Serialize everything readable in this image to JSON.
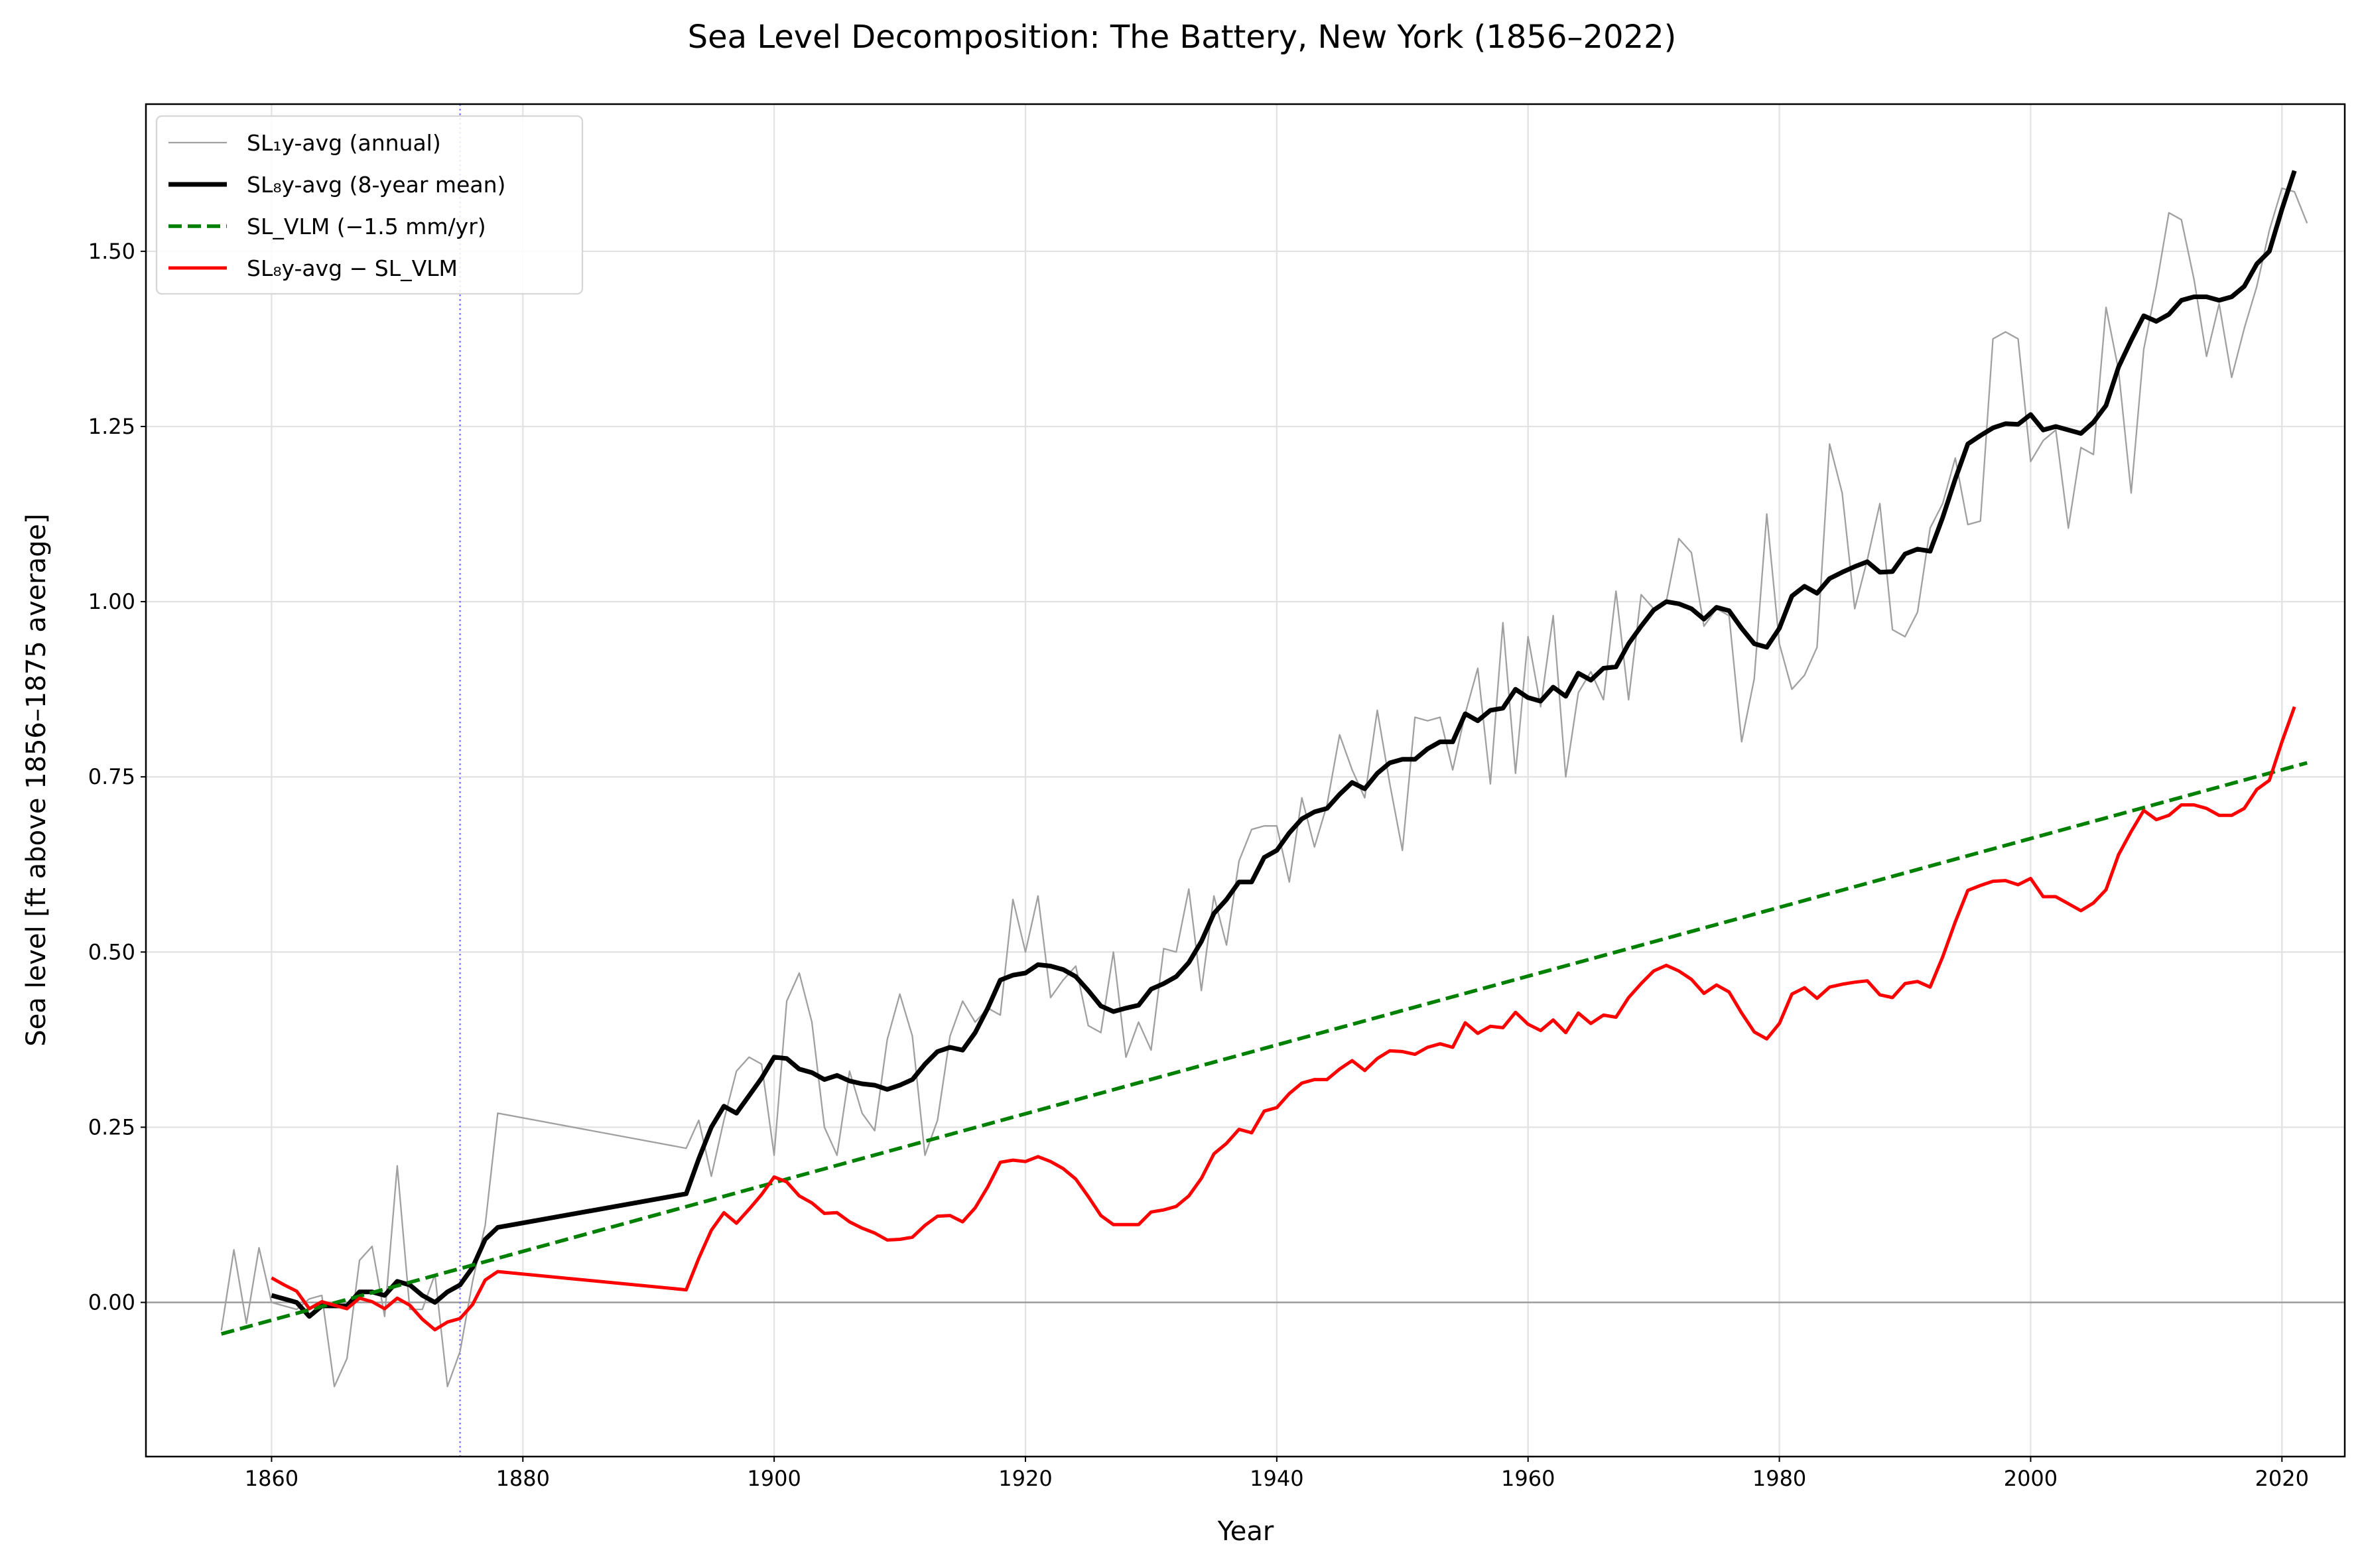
{
  "chart_data": {
    "type": "line",
    "title": "Sea Level Decomposition: The Battery, New York (1856–2022)",
    "xlabel": "Year",
    "ylabel": "Sea level [ft above 1856–1875 average]",
    "xlim": [
      1850,
      2025
    ],
    "ylim": [
      -0.22,
      1.71
    ],
    "xticks": [
      1860,
      1880,
      1900,
      1920,
      1940,
      1960,
      1980,
      2000,
      2020
    ],
    "xtick_labels": [
      "1860",
      "1880",
      "1900",
      "1920",
      "1940",
      "1960",
      "1980",
      "2000",
      "2020"
    ],
    "yticks": [
      0,
      0.25,
      0.5,
      0.75,
      1.0,
      1.25,
      1.5
    ],
    "ytick_labels": [
      "0.00",
      "0.25",
      "0.50",
      "0.75",
      "1.00",
      "1.25",
      "1.50"
    ],
    "grid": true,
    "legend_placement": "upper-left",
    "reference_lines": {
      "zero_line": 0,
      "vertical_marker_year": 1875,
      "vertical_marker_color": "#7777ff"
    },
    "series": [
      {
        "name": "SL₁y-avg (annual)",
        "color": "#a0a0a0",
        "style": "solid-thin",
        "x": [
          1856,
          1857,
          1858,
          1859,
          1860,
          1861,
          1862,
          1863,
          1864,
          1865,
          1866,
          1867,
          1868,
          1869,
          1870,
          1871,
          1872,
          1873,
          1874,
          1875,
          1876,
          1877,
          1878,
          1893,
          1894,
          1895,
          1896,
          1897,
          1898,
          1899,
          1900,
          1901,
          1902,
          1903,
          1904,
          1905,
          1906,
          1907,
          1908,
          1909,
          1910,
          1911,
          1912,
          1913,
          1914,
          1915,
          1916,
          1917,
          1918,
          1919,
          1920,
          1921,
          1922,
          1923,
          1924,
          1925,
          1926,
          1927,
          1928,
          1929,
          1930,
          1931,
          1932,
          1933,
          1934,
          1935,
          1936,
          1937,
          1938,
          1939,
          1940,
          1941,
          1942,
          1943,
          1944,
          1945,
          1946,
          1947,
          1948,
          1949,
          1950,
          1951,
          1952,
          1953,
          1954,
          1955,
          1956,
          1957,
          1958,
          1959,
          1960,
          1961,
          1962,
          1963,
          1964,
          1965,
          1966,
          1967,
          1968,
          1969,
          1970,
          1971,
          1972,
          1973,
          1974,
          1975,
          1976,
          1977,
          1978,
          1979,
          1980,
          1981,
          1982,
          1983,
          1984,
          1985,
          1986,
          1987,
          1988,
          1989,
          1990,
          1991,
          1992,
          1993,
          1994,
          1995,
          1996,
          1997,
          1998,
          1999,
          2000,
          2001,
          2002,
          2003,
          2004,
          2005,
          2006,
          2007,
          2008,
          2009,
          2010,
          2011,
          2012,
          2013,
          2014,
          2015,
          2016,
          2017,
          2018,
          2019,
          2020,
          2021,
          2022
        ],
        "y": [
          -0.04,
          0.075,
          -0.03,
          0.078,
          0.0,
          -0.005,
          -0.01,
          0.005,
          0.01,
          -0.12,
          -0.08,
          0.06,
          0.08,
          -0.02,
          0.195,
          -0.01,
          -0.01,
          0.04,
          -0.12,
          -0.07,
          0.03,
          0.11,
          0.27,
          0.22,
          0.26,
          0.18,
          0.26,
          0.33,
          0.35,
          0.34,
          0.21,
          0.43,
          0.47,
          0.4,
          0.25,
          0.21,
          0.33,
          0.27,
          0.245,
          0.375,
          0.44,
          0.38,
          0.21,
          0.26,
          0.38,
          0.43,
          0.4,
          0.42,
          0.41,
          0.575,
          0.5,
          0.58,
          0.435,
          0.46,
          0.48,
          0.395,
          0.385,
          0.5,
          0.35,
          0.4,
          0.36,
          0.505,
          0.5,
          0.59,
          0.445,
          0.58,
          0.51,
          0.63,
          0.675,
          0.68,
          0.68,
          0.6,
          0.72,
          0.65,
          0.71,
          0.81,
          0.76,
          0.72,
          0.845,
          0.74,
          0.645,
          0.835,
          0.83,
          0.835,
          0.76,
          0.84,
          0.905,
          0.74,
          0.97,
          0.755,
          0.95,
          0.85,
          0.98,
          0.75,
          0.87,
          0.9,
          0.86,
          1.015,
          0.86,
          1.01,
          0.99,
          1.0,
          1.09,
          1.07,
          0.965,
          0.99,
          0.98,
          0.8,
          0.89,
          1.125,
          0.94,
          0.875,
          0.895,
          0.935,
          1.225,
          1.155,
          0.99,
          1.06,
          1.14,
          0.96,
          0.95,
          0.985,
          1.105,
          1.14,
          1.205,
          1.11,
          1.115,
          1.375,
          1.385,
          1.375,
          1.2,
          1.23,
          1.245,
          1.105,
          1.22,
          1.21,
          1.42,
          1.33,
          1.155,
          1.36,
          1.45,
          1.555,
          1.545,
          1.46,
          1.35,
          1.425,
          1.32,
          1.39,
          1.45,
          1.53,
          1.59,
          1.585,
          1.54
        ]
      },
      {
        "name": "SL₈y-avg (8-year mean)",
        "color": "#000000",
        "style": "solid-thick",
        "x": [
          1860,
          1861,
          1862,
          1863,
          1864,
          1865,
          1866,
          1867,
          1868,
          1869,
          1870,
          1871,
          1872,
          1873,
          1874,
          1875,
          1876,
          1877,
          1878,
          1893,
          1894,
          1895,
          1896,
          1897,
          1898,
          1899,
          1900,
          1901,
          1902,
          1903,
          1904,
          1905,
          1906,
          1907,
          1908,
          1909,
          1910,
          1911,
          1912,
          1913,
          1914,
          1915,
          1916,
          1917,
          1918,
          1919,
          1920,
          1921,
          1922,
          1923,
          1924,
          1925,
          1926,
          1927,
          1928,
          1929,
          1930,
          1931,
          1932,
          1933,
          1934,
          1935,
          1936,
          1937,
          1938,
          1939,
          1940,
          1941,
          1942,
          1943,
          1944,
          1945,
          1946,
          1947,
          1948,
          1949,
          1950,
          1951,
          1952,
          1953,
          1954,
          1955,
          1956,
          1957,
          1958,
          1959,
          1960,
          1961,
          1962,
          1963,
          1964,
          1965,
          1966,
          1967,
          1968,
          1969,
          1970,
          1971,
          1972,
          1973,
          1974,
          1975,
          1976,
          1977,
          1978,
          1979,
          1980,
          1981,
          1982,
          1983,
          1984,
          1985,
          1986,
          1987,
          1988,
          1989,
          1990,
          1991,
          1992,
          1993,
          1994,
          1995,
          1996,
          1997,
          1998,
          1999,
          2000,
          2001,
          2002,
          2003,
          2004,
          2005,
          2006,
          2007,
          2008,
          2009,
          2010,
          2011,
          2012,
          2013,
          2014,
          2015,
          2016,
          2017,
          2018,
          2019,
          2020,
          2021
        ],
        "y": [
          0.01,
          0.005,
          0.0,
          -0.02,
          -0.005,
          -0.005,
          -0.005,
          0.015,
          0.015,
          0.01,
          0.03,
          0.025,
          0.01,
          0.0,
          0.015,
          0.025,
          0.05,
          0.09,
          0.107,
          0.155,
          0.205,
          0.25,
          0.28,
          0.27,
          0.295,
          0.32,
          0.35,
          0.348,
          0.333,
          0.328,
          0.318,
          0.324,
          0.316,
          0.312,
          0.31,
          0.304,
          0.31,
          0.318,
          0.34,
          0.358,
          0.364,
          0.36,
          0.385,
          0.42,
          0.46,
          0.467,
          0.47,
          0.482,
          0.48,
          0.475,
          0.465,
          0.445,
          0.423,
          0.415,
          0.42,
          0.424,
          0.447,
          0.455,
          0.465,
          0.485,
          0.515,
          0.555,
          0.575,
          0.6,
          0.6,
          0.635,
          0.645,
          0.67,
          0.69,
          0.7,
          0.705,
          0.725,
          0.742,
          0.733,
          0.755,
          0.77,
          0.775,
          0.775,
          0.79,
          0.8,
          0.8,
          0.84,
          0.83,
          0.845,
          0.848,
          0.875,
          0.863,
          0.858,
          0.878,
          0.865,
          0.898,
          0.888,
          0.905,
          0.907,
          0.94,
          0.965,
          0.988,
          1.0,
          0.997,
          0.99,
          0.975,
          0.992,
          0.987,
          0.962,
          0.94,
          0.935,
          0.962,
          1.008,
          1.022,
          1.012,
          1.033,
          1.042,
          1.05,
          1.057,
          1.042,
          1.043,
          1.068,
          1.075,
          1.072,
          1.12,
          1.175,
          1.225,
          1.237,
          1.248,
          1.254,
          1.253,
          1.267,
          1.245,
          1.25,
          1.245,
          1.24,
          1.256,
          1.28,
          1.335,
          1.373,
          1.408,
          1.4,
          1.41,
          1.43,
          1.435,
          1.435,
          1.43,
          1.435,
          1.45,
          1.482,
          1.5,
          1.56,
          1.615
        ]
      },
      {
        "name": "SL_VLM (−1.5 mm/yr)",
        "color": "#008000",
        "style": "dashed",
        "x": [
          1856,
          2022
        ],
        "y": [
          -0.045,
          0.77
        ]
      },
      {
        "name": "SL₈y-avg − SL_VLM",
        "color": "#ff0000",
        "style": "solid-medium",
        "x": [
          1860,
          1861,
          1862,
          1863,
          1864,
          1865,
          1866,
          1867,
          1868,
          1869,
          1870,
          1871,
          1872,
          1873,
          1874,
          1875,
          1876,
          1877,
          1878,
          1893,
          1894,
          1895,
          1896,
          1897,
          1898,
          1899,
          1900,
          1901,
          1902,
          1903,
          1904,
          1905,
          1906,
          1907,
          1908,
          1909,
          1910,
          1911,
          1912,
          1913,
          1914,
          1915,
          1916,
          1917,
          1918,
          1919,
          1920,
          1921,
          1922,
          1923,
          1924,
          1925,
          1926,
          1927,
          1928,
          1929,
          1930,
          1931,
          1932,
          1933,
          1934,
          1935,
          1936,
          1937,
          1938,
          1939,
          1940,
          1941,
          1942,
          1943,
          1944,
          1945,
          1946,
          1947,
          1948,
          1949,
          1950,
          1951,
          1952,
          1953,
          1954,
          1955,
          1956,
          1957,
          1958,
          1959,
          1960,
          1961,
          1962,
          1963,
          1964,
          1965,
          1966,
          1967,
          1968,
          1969,
          1970,
          1971,
          1972,
          1973,
          1974,
          1975,
          1976,
          1977,
          1978,
          1979,
          1980,
          1981,
          1982,
          1983,
          1984,
          1985,
          1986,
          1987,
          1988,
          1989,
          1990,
          1991,
          1992,
          1993,
          1994,
          1995,
          1996,
          1997,
          1998,
          1999,
          2000,
          2001,
          2002,
          2003,
          2004,
          2005,
          2006,
          2007,
          2008,
          2009,
          2010,
          2011,
          2012,
          2013,
          2014,
          2015,
          2016,
          2017,
          2018,
          2019,
          2020,
          2021
        ],
        "y": [
          0.035,
          0.025,
          0.016,
          -0.009,
          0.001,
          -0.004,
          -0.009,
          0.006,
          0.001,
          -0.009,
          0.006,
          -0.004,
          -0.024,
          -0.039,
          -0.028,
          -0.023,
          -0.003,
          0.032,
          0.044,
          0.018,
          0.063,
          0.103,
          0.128,
          0.113,
          0.133,
          0.154,
          0.179,
          0.172,
          0.152,
          0.142,
          0.127,
          0.128,
          0.115,
          0.106,
          0.099,
          0.089,
          0.09,
          0.093,
          0.11,
          0.123,
          0.124,
          0.115,
          0.135,
          0.165,
          0.2,
          0.203,
          0.201,
          0.208,
          0.201,
          0.191,
          0.176,
          0.151,
          0.124,
          0.111,
          0.111,
          0.111,
          0.129,
          0.132,
          0.137,
          0.152,
          0.177,
          0.212,
          0.227,
          0.247,
          0.242,
          0.273,
          0.278,
          0.298,
          0.313,
          0.318,
          0.318,
          0.333,
          0.345,
          0.331,
          0.348,
          0.359,
          0.358,
          0.354,
          0.364,
          0.369,
          0.364,
          0.399,
          0.384,
          0.394,
          0.392,
          0.414,
          0.397,
          0.388,
          0.403,
          0.385,
          0.413,
          0.398,
          0.41,
          0.407,
          0.435,
          0.455,
          0.473,
          0.481,
          0.473,
          0.461,
          0.441,
          0.453,
          0.443,
          0.413,
          0.386,
          0.376,
          0.398,
          0.44,
          0.449,
          0.434,
          0.45,
          0.454,
          0.457,
          0.459,
          0.439,
          0.435,
          0.455,
          0.458,
          0.45,
          0.493,
          0.543,
          0.588,
          0.595,
          0.601,
          0.602,
          0.596,
          0.605,
          0.579,
          0.579,
          0.569,
          0.559,
          0.57,
          0.589,
          0.639,
          0.672,
          0.702,
          0.689,
          0.695,
          0.71,
          0.71,
          0.705,
          0.695,
          0.695,
          0.705,
          0.732,
          0.745,
          0.8,
          0.85
        ]
      }
    ]
  }
}
